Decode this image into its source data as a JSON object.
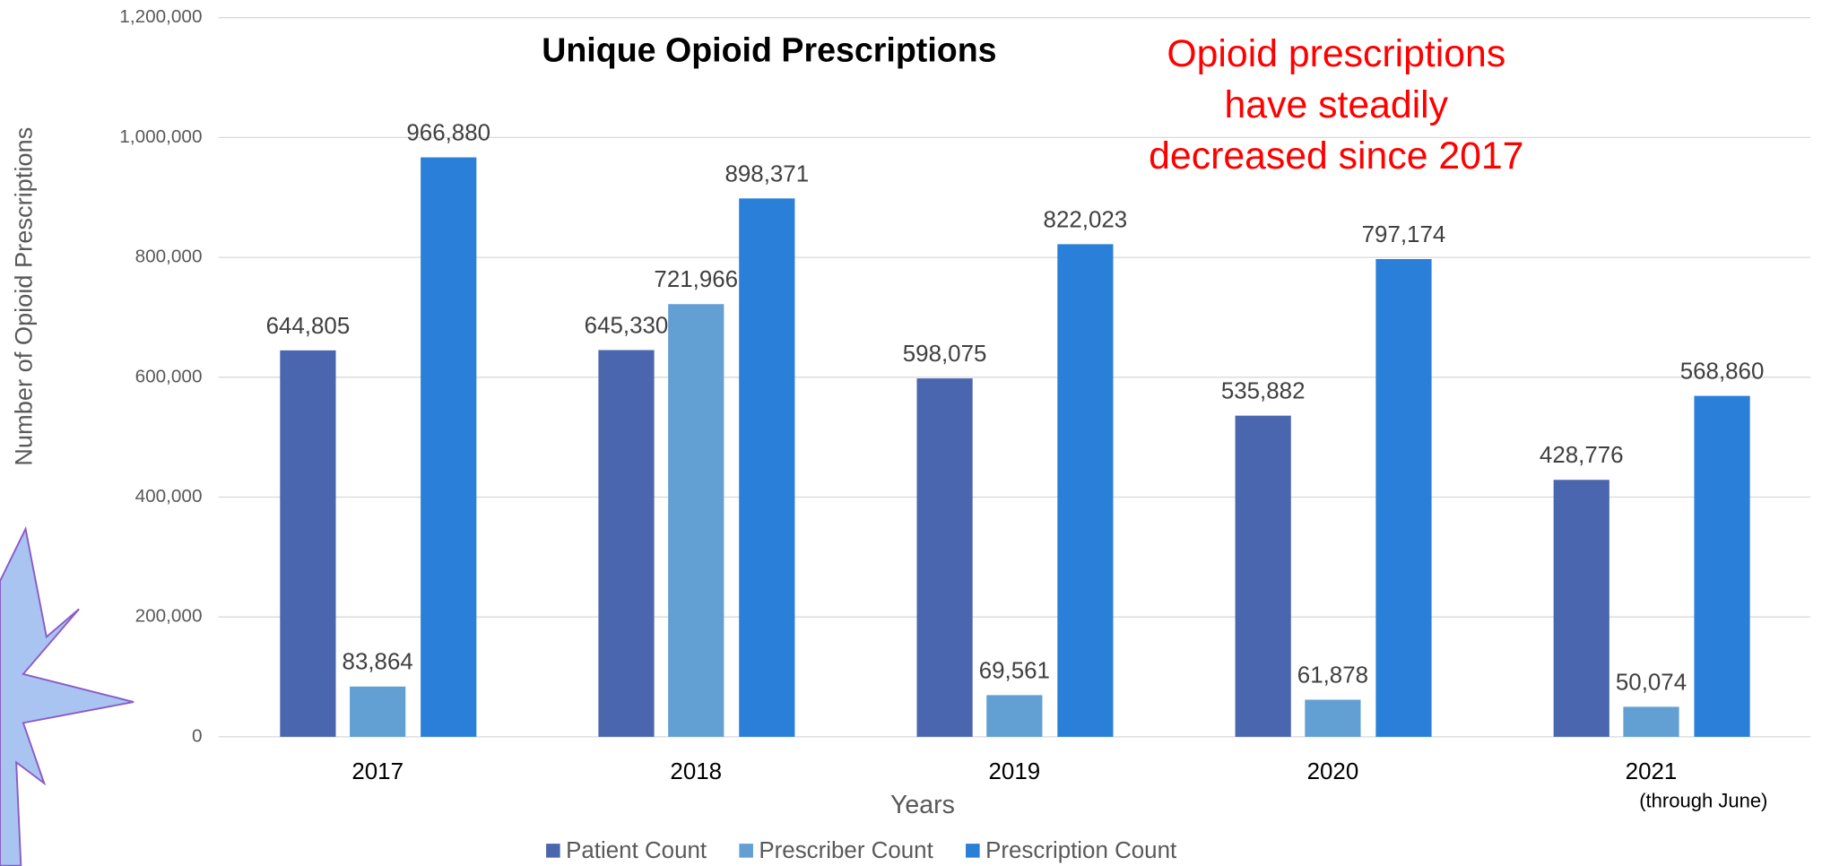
{
  "chart_data": {
    "type": "bar",
    "title": "Unique Opioid Prescriptions",
    "x_label": "Years",
    "y_label": "Number of Opioid Prescriptions",
    "annotation": [
      "Opioid prescriptions",
      "have steadily",
      "decreased since 2017"
    ],
    "category_note": "(through June)",
    "categories": [
      "2017",
      "2018",
      "2019",
      "2020",
      "2021"
    ],
    "series": [
      {
        "name": "Patient Count",
        "color": "#4a66ae",
        "values": [
          644805,
          645330,
          598075,
          535882,
          428776
        ],
        "value_labels": [
          "644,805",
          "645,330",
          "598,075",
          "535,882",
          "428,776"
        ]
      },
      {
        "name": "Prescriber Count",
        "color": "#629fd3",
        "values": [
          83864,
          721966,
          69561,
          61878,
          50074
        ],
        "value_labels": [
          "83,864",
          "721,966",
          "69,561",
          "61,878",
          "50,074"
        ]
      },
      {
        "name": "Prescription Count",
        "color": "#2a7fd8",
        "values": [
          966880,
          898371,
          822023,
          797174,
          568860
        ],
        "value_labels": [
          "966,880",
          "898,371",
          "822,023",
          "797,174",
          "568,860"
        ]
      }
    ],
    "ylim": [
      0,
      1200000
    ],
    "yticks": [
      0,
      {
        "value": 200000,
        "label": "200,000"
      },
      {
        "value": 400000,
        "label": "400,000"
      },
      {
        "value": 600000,
        "label": "600,000"
      },
      {
        "value": 800000,
        "label": "800,000"
      },
      {
        "value": 1000000,
        "label": "1,000,000"
      },
      {
        "value": 1200000,
        "label": "1,200,000"
      }
    ],
    "grid": true,
    "legend": "bottom"
  }
}
